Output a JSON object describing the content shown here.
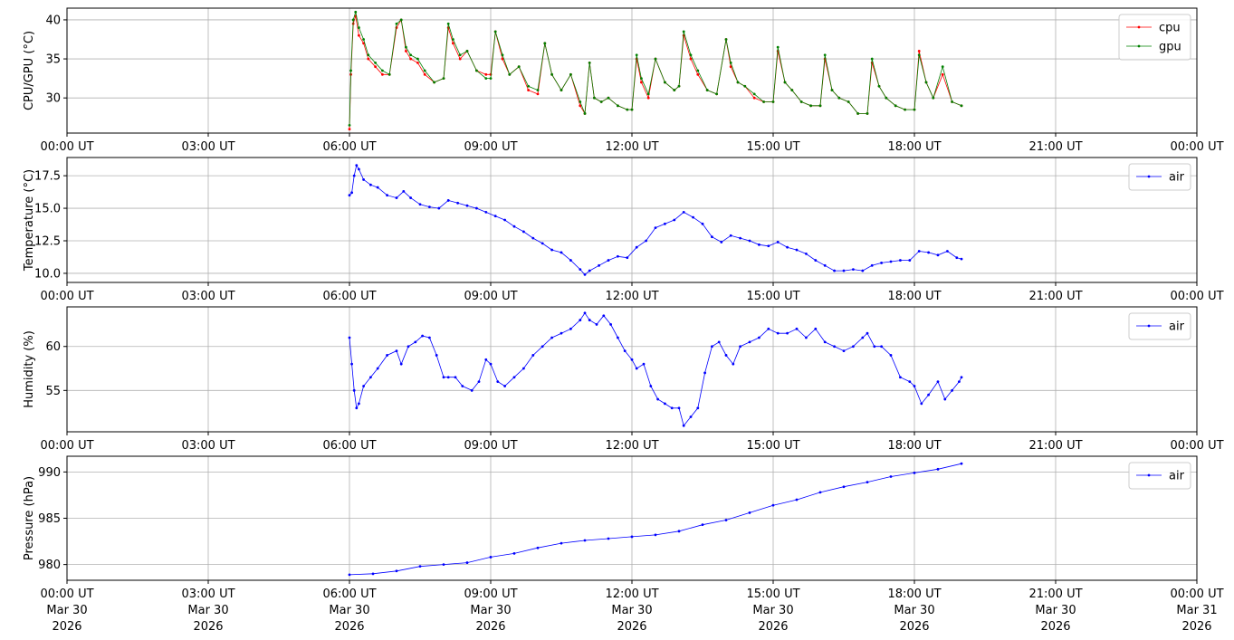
{
  "chart_data": [
    {
      "type": "line",
      "ylabel": "CPU/GPU (°C)",
      "ylim": [
        25.5,
        41.5
      ],
      "yticks": [
        30,
        35,
        40
      ],
      "grid": true,
      "legend_position": "top-right",
      "series": [
        {
          "name": "cpu",
          "color": "#ff0000",
          "x": [
            6.0,
            6.03,
            6.08,
            6.13,
            6.2,
            6.3,
            6.4,
            6.55,
            6.7,
            6.85,
            7.0,
            7.1,
            7.2,
            7.3,
            7.45,
            7.6,
            7.8,
            8.0,
            8.1,
            8.2,
            8.35,
            8.5,
            8.7,
            8.9,
            9.0,
            9.1,
            9.25,
            9.4,
            9.6,
            9.8,
            10.0,
            10.15,
            10.3,
            10.5,
            10.7,
            10.9,
            11.0,
            11.1,
            11.2,
            11.35,
            11.5,
            11.7,
            11.9,
            12.0,
            12.1,
            12.2,
            12.35,
            12.5,
            12.7,
            12.9,
            13.0,
            13.1,
            13.25,
            13.4,
            13.6,
            13.8,
            14.0,
            14.1,
            14.25,
            14.4,
            14.6,
            14.8,
            15.0,
            15.1,
            15.25,
            15.4,
            15.6,
            15.8,
            16.0,
            16.1,
            16.25,
            16.4,
            16.6,
            16.8,
            17.0,
            17.1,
            17.25,
            17.4,
            17.6,
            17.8,
            18.0,
            18.1,
            18.25,
            18.4,
            18.6,
            18.8,
            19.0
          ],
          "y": [
            26.0,
            33.0,
            39.5,
            40.5,
            38.0,
            37.0,
            35.0,
            34.0,
            33.0,
            33.0,
            39.0,
            40.0,
            36.0,
            35.0,
            34.5,
            33.0,
            32.0,
            32.5,
            39.0,
            37.0,
            35.0,
            36.0,
            33.5,
            33.0,
            33.0,
            38.5,
            35.0,
            33.0,
            34.0,
            31.0,
            30.5,
            37.0,
            33.0,
            31.0,
            33.0,
            29.0,
            28.0,
            34.5,
            30.0,
            29.5,
            30.0,
            29.0,
            28.5,
            28.5,
            35.0,
            32.0,
            30.0,
            35.0,
            32.0,
            31.0,
            31.5,
            38.0,
            35.0,
            33.0,
            31.0,
            30.5,
            37.5,
            34.0,
            32.0,
            31.5,
            30.0,
            29.5,
            29.5,
            36.0,
            32.0,
            31.0,
            29.5,
            29.0,
            29.0,
            35.0,
            31.0,
            30.0,
            29.5,
            28.0,
            28.0,
            34.5,
            31.5,
            30.0,
            29.0,
            28.5,
            28.5,
            36.0,
            32.0,
            30.0,
            33.0,
            29.5,
            29.0
          ]
        },
        {
          "name": "gpu",
          "color": "#008000",
          "x": [
            6.0,
            6.03,
            6.08,
            6.13,
            6.2,
            6.3,
            6.4,
            6.55,
            6.7,
            6.85,
            7.0,
            7.1,
            7.2,
            7.3,
            7.45,
            7.6,
            7.8,
            8.0,
            8.1,
            8.2,
            8.35,
            8.5,
            8.7,
            8.9,
            9.0,
            9.1,
            9.25,
            9.4,
            9.6,
            9.8,
            10.0,
            10.15,
            10.3,
            10.5,
            10.7,
            10.9,
            11.0,
            11.1,
            11.2,
            11.35,
            11.5,
            11.7,
            11.9,
            12.0,
            12.1,
            12.2,
            12.35,
            12.5,
            12.7,
            12.9,
            13.0,
            13.1,
            13.25,
            13.4,
            13.6,
            13.8,
            14.0,
            14.1,
            14.25,
            14.4,
            14.6,
            14.8,
            15.0,
            15.1,
            15.25,
            15.4,
            15.6,
            15.8,
            16.0,
            16.1,
            16.25,
            16.4,
            16.6,
            16.8,
            17.0,
            17.1,
            17.25,
            17.4,
            17.6,
            17.8,
            18.0,
            18.1,
            18.25,
            18.4,
            18.6,
            18.8,
            19.0
          ],
          "y": [
            26.5,
            33.5,
            40.0,
            41.0,
            39.0,
            37.5,
            35.5,
            34.5,
            33.5,
            33.0,
            39.5,
            40.0,
            36.5,
            35.5,
            35.0,
            33.5,
            32.0,
            32.5,
            39.5,
            37.5,
            35.5,
            36.0,
            33.5,
            32.5,
            32.5,
            38.5,
            35.5,
            33.0,
            34.0,
            31.5,
            31.0,
            37.0,
            33.0,
            31.0,
            33.0,
            29.5,
            28.0,
            34.5,
            30.0,
            29.5,
            30.0,
            29.0,
            28.5,
            28.5,
            35.5,
            32.5,
            30.5,
            35.0,
            32.0,
            31.0,
            31.5,
            38.5,
            35.5,
            33.5,
            31.0,
            30.5,
            37.5,
            34.5,
            32.0,
            31.5,
            30.5,
            29.5,
            29.5,
            36.5,
            32.0,
            31.0,
            29.5,
            29.0,
            29.0,
            35.5,
            31.0,
            30.0,
            29.5,
            28.0,
            28.0,
            35.0,
            31.5,
            30.0,
            29.0,
            28.5,
            28.5,
            35.5,
            32.0,
            30.0,
            34.0,
            29.5,
            29.0
          ]
        }
      ]
    },
    {
      "type": "line",
      "ylabel": "Temperature (°C)",
      "ylim": [
        9.3,
        18.9
      ],
      "yticks": [
        10.0,
        12.5,
        15.0,
        17.5
      ],
      "grid": true,
      "legend_position": "top-right",
      "series": [
        {
          "name": "air",
          "color": "#0000ff",
          "x": [
            6.0,
            6.05,
            6.1,
            6.15,
            6.2,
            6.3,
            6.45,
            6.6,
            6.8,
            7.0,
            7.15,
            7.3,
            7.5,
            7.7,
            7.9,
            8.1,
            8.3,
            8.5,
            8.7,
            8.9,
            9.1,
            9.3,
            9.5,
            9.7,
            9.9,
            10.1,
            10.3,
            10.5,
            10.7,
            10.9,
            11.0,
            11.1,
            11.3,
            11.5,
            11.7,
            11.9,
            12.1,
            12.3,
            12.5,
            12.7,
            12.9,
            13.1,
            13.3,
            13.5,
            13.7,
            13.9,
            14.1,
            14.3,
            14.5,
            14.7,
            14.9,
            15.1,
            15.3,
            15.5,
            15.7,
            15.9,
            16.1,
            16.3,
            16.5,
            16.7,
            16.9,
            17.1,
            17.3,
            17.5,
            17.7,
            17.9,
            18.1,
            18.3,
            18.5,
            18.7,
            18.9,
            19.0
          ],
          "y": [
            16.0,
            16.2,
            17.5,
            18.3,
            18.0,
            17.2,
            16.8,
            16.6,
            16.0,
            15.8,
            16.3,
            15.8,
            15.3,
            15.1,
            15.0,
            15.6,
            15.4,
            15.2,
            15.0,
            14.7,
            14.4,
            14.1,
            13.6,
            13.2,
            12.7,
            12.3,
            11.8,
            11.6,
            11.0,
            10.3,
            9.9,
            10.2,
            10.6,
            11.0,
            11.3,
            11.2,
            12.0,
            12.5,
            13.5,
            13.8,
            14.1,
            14.7,
            14.3,
            13.8,
            12.8,
            12.4,
            12.9,
            12.7,
            12.5,
            12.2,
            12.1,
            12.4,
            12.0,
            11.8,
            11.5,
            11.0,
            10.6,
            10.2,
            10.2,
            10.3,
            10.2,
            10.6,
            10.8,
            10.9,
            11.0,
            11.0,
            11.7,
            11.6,
            11.4,
            11.7,
            11.2,
            11.1
          ]
        }
      ]
    },
    {
      "type": "line",
      "ylabel": "Humidity (%)",
      "ylim": [
        50.3,
        64.5
      ],
      "yticks": [
        55,
        60
      ],
      "grid": true,
      "legend_position": "top-right",
      "series": [
        {
          "name": "air",
          "color": "#0000ff",
          "x": [
            6.0,
            6.05,
            6.1,
            6.15,
            6.2,
            6.3,
            6.45,
            6.6,
            6.8,
            7.0,
            7.1,
            7.25,
            7.4,
            7.55,
            7.7,
            7.85,
            8.0,
            8.1,
            8.25,
            8.4,
            8.6,
            8.75,
            8.9,
            9.0,
            9.15,
            9.3,
            9.5,
            9.7,
            9.9,
            10.1,
            10.3,
            10.5,
            10.7,
            10.9,
            11.0,
            11.1,
            11.25,
            11.4,
            11.55,
            11.7,
            11.85,
            12.0,
            12.1,
            12.25,
            12.4,
            12.55,
            12.7,
            12.85,
            13.0,
            13.1,
            13.25,
            13.4,
            13.55,
            13.7,
            13.85,
            14.0,
            14.15,
            14.3,
            14.5,
            14.7,
            14.9,
            15.1,
            15.3,
            15.5,
            15.7,
            15.9,
            16.1,
            16.3,
            16.5,
            16.7,
            16.9,
            17.0,
            17.15,
            17.3,
            17.5,
            17.7,
            17.9,
            18.0,
            18.15,
            18.3,
            18.5,
            18.65,
            18.8,
            18.95,
            19.0
          ],
          "y": [
            61.0,
            58.0,
            55.0,
            53.0,
            53.5,
            55.5,
            56.5,
            57.5,
            59.0,
            59.5,
            58.0,
            60.0,
            60.5,
            61.2,
            61.0,
            59.0,
            56.5,
            56.5,
            56.5,
            55.5,
            55.0,
            56.0,
            58.5,
            58.0,
            56.0,
            55.5,
            56.5,
            57.5,
            59.0,
            60.0,
            61.0,
            61.5,
            62.0,
            63.0,
            63.8,
            63.0,
            62.5,
            63.5,
            62.5,
            61.0,
            59.5,
            58.5,
            57.5,
            58.0,
            55.5,
            54.0,
            53.5,
            53.0,
            53.0,
            51.0,
            52.0,
            53.0,
            57.0,
            60.0,
            60.5,
            59.0,
            58.0,
            60.0,
            60.5,
            61.0,
            62.0,
            61.5,
            61.5,
            62.0,
            61.0,
            62.0,
            60.5,
            60.0,
            59.5,
            60.0,
            61.0,
            61.5,
            60.0,
            60.0,
            59.0,
            56.5,
            56.0,
            55.5,
            53.5,
            54.5,
            56.0,
            54.0,
            55.0,
            56.0,
            56.5
          ]
        }
      ]
    },
    {
      "type": "line",
      "ylabel": "Pressure (hPa)",
      "ylim": [
        978.3,
        991.7
      ],
      "yticks": [
        980,
        985,
        990
      ],
      "grid": true,
      "legend_position": "top-right",
      "series": [
        {
          "name": "air",
          "color": "#0000ff",
          "x": [
            6.0,
            6.5,
            7.0,
            7.5,
            8.0,
            8.5,
            9.0,
            9.5,
            10.0,
            10.5,
            11.0,
            11.5,
            12.0,
            12.5,
            13.0,
            13.5,
            14.0,
            14.5,
            15.0,
            15.5,
            16.0,
            16.5,
            17.0,
            17.5,
            18.0,
            18.5,
            19.0
          ],
          "y": [
            978.9,
            979.0,
            979.3,
            979.8,
            980.0,
            980.2,
            980.8,
            981.2,
            981.8,
            982.3,
            982.6,
            982.8,
            983.0,
            983.2,
            983.6,
            984.3,
            984.8,
            985.6,
            986.4,
            987.0,
            987.8,
            988.4,
            988.9,
            989.5,
            989.9,
            990.3,
            990.9
          ]
        }
      ]
    }
  ],
  "x_axis": {
    "range_hours": [
      0,
      24
    ],
    "ticks": [
      0,
      3,
      6,
      9,
      12,
      15,
      18,
      21,
      24
    ],
    "tick_labels": [
      "00:00 UT",
      "03:00 UT",
      "06:00 UT",
      "09:00 UT",
      "12:00 UT",
      "15:00 UT",
      "18:00 UT",
      "21:00 UT",
      "00:00 UT"
    ],
    "date_labels": [
      "Mar 30",
      "Mar 30",
      "Mar 30",
      "Mar 30",
      "Mar 30",
      "Mar 30",
      "Mar 30",
      "Mar 30",
      "Mar 31"
    ],
    "year_labels": [
      "2026",
      "2026",
      "2026",
      "2026",
      "2026",
      "2026",
      "2026",
      "2026",
      "2026"
    ]
  }
}
